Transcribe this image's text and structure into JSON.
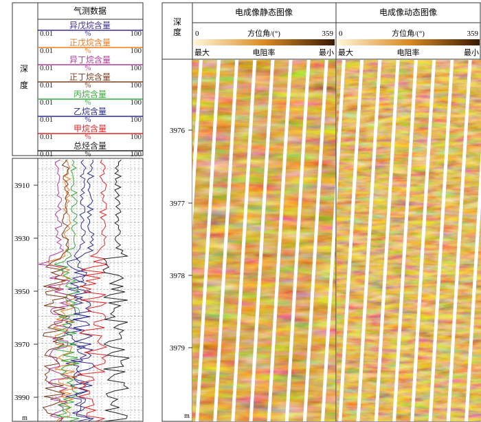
{
  "left_panel": {
    "gas_header": "气测数据",
    "depth_label": [
      "深",
      "度"
    ],
    "curves": [
      {
        "name": "异戊烷含量",
        "min": "0.01",
        "unit": "%",
        "max": "100",
        "color": "#3a2f8f"
      },
      {
        "name": "正戊烷含量",
        "min": "0.01",
        "unit": "%",
        "max": "100",
        "color": "#f07a1c"
      },
      {
        "name": "异丁烷含量",
        "min": "0.01",
        "unit": "%",
        "max": "100",
        "color": "#b0399a"
      },
      {
        "name": "正丁烷含量",
        "min": "0.01",
        "unit": "%",
        "max": "100",
        "color": "#7a3b1e"
      },
      {
        "name": "丙烷含量",
        "min": "0.01",
        "unit": "%",
        "max": "100",
        "color": "#35a83a"
      },
      {
        "name": "乙烷含量",
        "min": "0.01",
        "unit": "%",
        "max": "100",
        "color": "#2a2a8a"
      },
      {
        "name": "甲烷含量",
        "min": "0.01",
        "unit": "%",
        "max": "100",
        "color": "#e02525"
      },
      {
        "name": "总烃含量",
        "min": "0.01",
        "unit": "%",
        "max": "100",
        "color": "#222222"
      }
    ],
    "depth_ticks": [
      "3910",
      "3930",
      "3950",
      "3970",
      "3990"
    ],
    "unit": "m"
  },
  "right_panel": {
    "depth_label": [
      "深",
      "度"
    ],
    "static_title": "电成像静态图像",
    "dynamic_title": "电成像动态图像",
    "azimuth_min": "0",
    "azimuth_label": "方位角/(°)",
    "azimuth_max": "359",
    "resistivity_left": "最大",
    "resistivity_label": "电阻率",
    "resistivity_right": "最小",
    "depth_ticks": [
      "3976",
      "3977",
      "3978",
      "3979"
    ],
    "unit": "m"
  },
  "colors": {
    "image_dark": "#3a1a04",
    "image_mid": "#b8650f",
    "image_light": "#f2cf8a",
    "frame": "#333333"
  }
}
